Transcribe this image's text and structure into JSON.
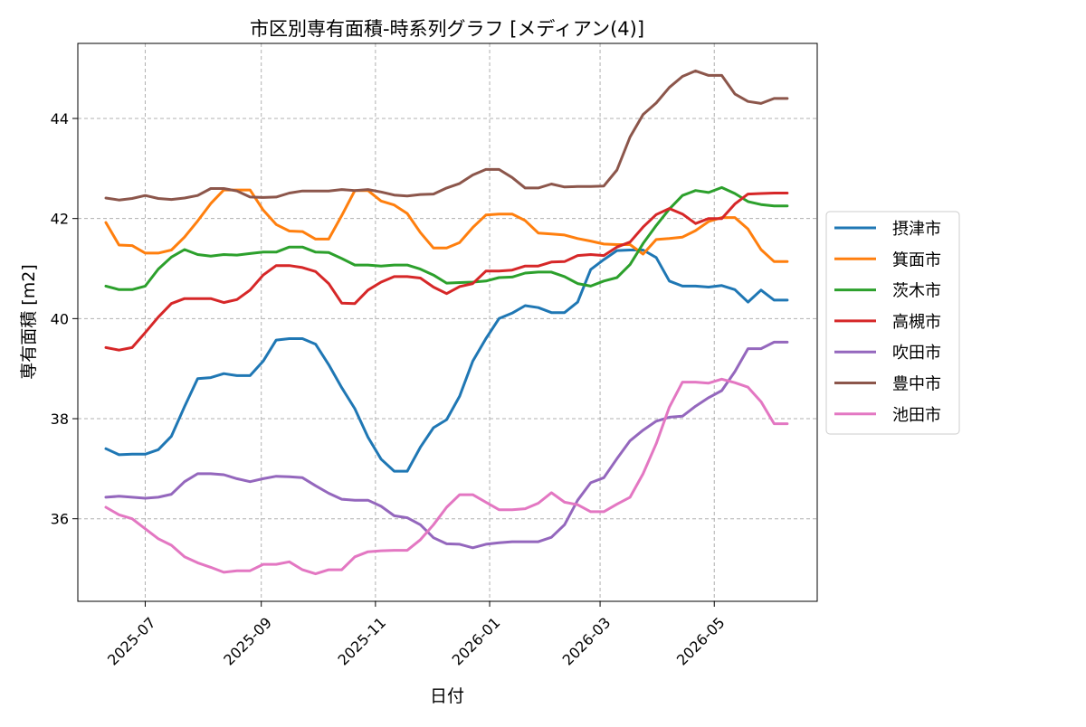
{
  "chart_data": {
    "type": "line",
    "title": "市区別専有面積-時系列グラフ [メディアン(4)]",
    "xlabel": "日付",
    "ylabel": "専有面積 [m2]",
    "x_range": [
      "2025-05-26",
      "2026-06-25"
    ],
    "ylim": [
      34.35,
      45.5
    ],
    "grid": true,
    "legend_position": "outside-right",
    "x_ticks": [
      {
        "date": "2025-07-01",
        "label": "2025-07"
      },
      {
        "date": "2025-09-01",
        "label": "2025-09"
      },
      {
        "date": "2025-11-01",
        "label": "2025-11"
      },
      {
        "date": "2026-01-01",
        "label": "2026-01"
      },
      {
        "date": "2026-03-01",
        "label": "2026-03"
      },
      {
        "date": "2026-05-01",
        "label": "2026-05"
      }
    ],
    "y_ticks": [
      {
        "value": 36,
        "label": "36"
      },
      {
        "value": 38,
        "label": "38"
      },
      {
        "value": 40,
        "label": "40"
      },
      {
        "value": 42,
        "label": "42"
      },
      {
        "value": 44,
        "label": "44"
      }
    ],
    "x": [
      "2025-06-10",
      "2025-06-17",
      "2025-06-24",
      "2025-07-01",
      "2025-07-08",
      "2025-07-15",
      "2025-07-22",
      "2025-07-29",
      "2025-08-05",
      "2025-08-12",
      "2025-08-19",
      "2025-08-26",
      "2025-09-02",
      "2025-09-09",
      "2025-09-16",
      "2025-09-23",
      "2025-09-30",
      "2025-10-07",
      "2025-10-14",
      "2025-10-21",
      "2025-10-28",
      "2025-11-04",
      "2025-11-11",
      "2025-11-18",
      "2025-11-25",
      "2025-12-02",
      "2025-12-09",
      "2025-12-16",
      "2025-12-23",
      "2025-12-30",
      "2026-01-06",
      "2026-01-13",
      "2026-01-20",
      "2026-01-27",
      "2026-02-03",
      "2026-02-10",
      "2026-02-17",
      "2026-02-24",
      "2026-03-03",
      "2026-03-10",
      "2026-03-17",
      "2026-03-24",
      "2026-03-31",
      "2026-04-07",
      "2026-04-14",
      "2026-04-21",
      "2026-04-28",
      "2026-05-05",
      "2026-05-12",
      "2026-05-19",
      "2026-05-26",
      "2026-06-02",
      "2026-06-09"
    ],
    "series": [
      {
        "name": "摂津市",
        "color": "#1f77b4",
        "values": [
          37.4,
          37.28,
          37.29,
          37.29,
          37.38,
          37.65,
          38.24,
          38.8,
          38.82,
          38.9,
          38.86,
          38.86,
          39.15,
          39.57,
          39.6,
          39.6,
          39.49,
          39.08,
          38.62,
          38.2,
          37.63,
          37.19,
          36.95,
          36.95,
          37.43,
          37.82,
          37.98,
          38.45,
          39.15,
          39.6,
          40.0,
          40.11,
          40.26,
          40.22,
          40.12,
          40.12,
          40.33,
          40.98,
          41.18,
          41.36,
          41.37,
          41.37,
          41.22,
          40.75,
          40.65,
          40.65,
          40.63,
          40.66,
          40.58,
          40.33,
          40.57,
          40.37,
          40.37
        ]
      },
      {
        "name": "箕面市",
        "color": "#ff7f0e",
        "values": [
          41.92,
          41.47,
          41.46,
          41.31,
          41.31,
          41.37,
          41.63,
          41.95,
          42.3,
          42.57,
          42.57,
          42.57,
          42.17,
          41.88,
          41.75,
          41.74,
          41.59,
          41.59,
          42.06,
          42.56,
          42.56,
          42.35,
          42.27,
          42.1,
          41.72,
          41.41,
          41.41,
          41.52,
          41.82,
          42.07,
          42.09,
          42.09,
          41.96,
          41.71,
          41.69,
          41.67,
          41.6,
          41.55,
          41.49,
          41.48,
          41.48,
          41.29,
          41.58,
          41.6,
          41.63,
          41.76,
          41.94,
          42.02,
          42.02,
          41.79,
          41.38,
          41.14,
          41.14
        ]
      },
      {
        "name": "茨木市",
        "color": "#2ca02c",
        "values": [
          40.65,
          40.58,
          40.58,
          40.65,
          40.99,
          41.23,
          41.38,
          41.28,
          41.25,
          41.28,
          41.27,
          41.3,
          41.33,
          41.33,
          41.43,
          41.43,
          41.33,
          41.32,
          41.2,
          41.07,
          41.07,
          41.05,
          41.07,
          41.07,
          40.99,
          40.87,
          40.71,
          40.72,
          40.73,
          40.75,
          40.82,
          40.83,
          40.91,
          40.93,
          40.93,
          40.84,
          40.7,
          40.65,
          40.75,
          40.82,
          41.08,
          41.5,
          41.86,
          42.19,
          42.46,
          42.56,
          42.52,
          42.62,
          42.5,
          42.34,
          42.28,
          42.25,
          42.25
        ]
      },
      {
        "name": "高槻市",
        "color": "#d62728",
        "values": [
          39.42,
          39.37,
          39.42,
          39.72,
          40.03,
          40.3,
          40.4,
          40.4,
          40.4,
          40.32,
          40.38,
          40.57,
          40.87,
          41.06,
          41.06,
          41.02,
          40.94,
          40.7,
          40.31,
          40.3,
          40.57,
          40.73,
          40.84,
          40.84,
          40.81,
          40.63,
          40.5,
          40.64,
          40.7,
          40.95,
          40.95,
          40.97,
          41.05,
          41.05,
          41.13,
          41.14,
          41.26,
          41.28,
          41.26,
          41.43,
          41.53,
          41.83,
          42.08,
          42.2,
          42.09,
          41.9,
          42.0,
          42.0,
          42.29,
          42.49,
          42.5,
          42.51,
          42.51
        ]
      },
      {
        "name": "吹田市",
        "color": "#9467bd",
        "values": [
          36.43,
          36.45,
          36.43,
          36.41,
          36.43,
          36.49,
          36.74,
          36.9,
          36.9,
          36.88,
          36.8,
          36.74,
          36.8,
          36.85,
          36.84,
          36.82,
          36.66,
          36.51,
          36.39,
          36.37,
          36.37,
          36.25,
          36.06,
          36.02,
          35.88,
          35.62,
          35.5,
          35.49,
          35.42,
          35.49,
          35.52,
          35.54,
          35.54,
          35.54,
          35.63,
          35.88,
          36.37,
          36.72,
          36.82,
          37.2,
          37.56,
          37.77,
          37.95,
          38.03,
          38.05,
          38.25,
          38.42,
          38.56,
          38.94,
          39.4,
          39.4,
          39.53,
          39.53
        ]
      },
      {
        "name": "豊中市",
        "color": "#8c564b",
        "values": [
          42.41,
          42.37,
          42.4,
          42.46,
          42.4,
          42.38,
          42.41,
          42.46,
          42.6,
          42.6,
          42.55,
          42.43,
          42.42,
          42.43,
          42.51,
          42.55,
          42.55,
          42.55,
          42.58,
          42.56,
          42.58,
          42.53,
          42.47,
          42.45,
          42.48,
          42.49,
          42.61,
          42.7,
          42.87,
          42.98,
          42.98,
          42.82,
          42.61,
          42.61,
          42.69,
          42.63,
          42.64,
          42.64,
          42.65,
          42.97,
          43.63,
          44.08,
          44.31,
          44.62,
          44.84,
          44.95,
          44.86,
          44.86,
          44.49,
          44.34,
          44.3,
          44.4,
          44.4
        ]
      },
      {
        "name": "池田市",
        "color": "#e377c2",
        "values": [
          36.23,
          36.08,
          36.0,
          35.8,
          35.6,
          35.47,
          35.24,
          35.12,
          35.03,
          34.93,
          34.96,
          34.96,
          35.09,
          35.09,
          35.14,
          34.98,
          34.9,
          34.98,
          34.98,
          35.24,
          35.34,
          35.36,
          35.37,
          35.37,
          35.58,
          35.88,
          36.23,
          36.48,
          36.48,
          36.33,
          36.18,
          36.18,
          36.2,
          36.31,
          36.52,
          36.33,
          36.28,
          36.14,
          36.14,
          36.29,
          36.43,
          36.9,
          37.5,
          38.23,
          38.73,
          38.73,
          38.71,
          38.79,
          38.72,
          38.63,
          38.34,
          37.9,
          37.9
        ]
      }
    ]
  }
}
